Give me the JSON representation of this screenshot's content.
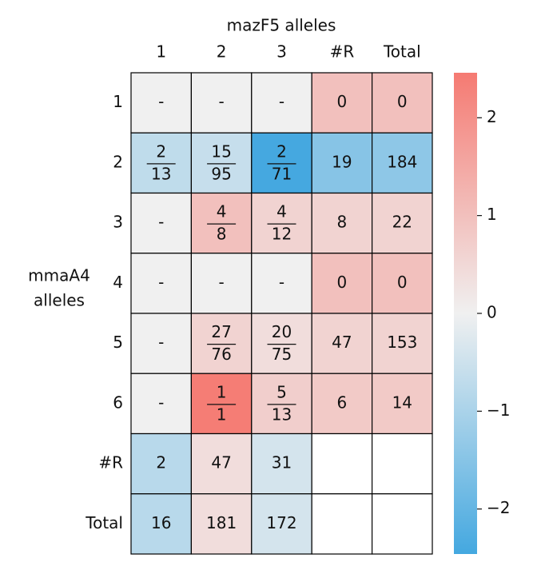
{
  "chart_data": {
    "type": "heatmap",
    "title": "mazF5 alleles",
    "ylabel": [
      "mmaA4",
      "alleles"
    ],
    "columns": [
      "1",
      "2",
      "3",
      "#R",
      "Total"
    ],
    "rows": [
      "1",
      "2",
      "3",
      "4",
      "5",
      "6",
      "#R",
      "Total"
    ],
    "cells": [
      [
        "-",
        "-",
        "-",
        "0",
        "0"
      ],
      [
        {
          "num": "2",
          "den": "13"
        },
        {
          "num": "15",
          "den": "95"
        },
        {
          "num": "2",
          "den": "71"
        },
        "19",
        "184"
      ],
      [
        "-",
        {
          "num": "4",
          "den": "8"
        },
        {
          "num": "4",
          "den": "12"
        },
        "8",
        "22"
      ],
      [
        "-",
        "-",
        "-",
        "0",
        "0"
      ],
      [
        "-",
        {
          "num": "27",
          "den": "76"
        },
        {
          "num": "20",
          "den": "75"
        },
        "47",
        "153"
      ],
      [
        "-",
        {
          "num": "1",
          "den": "1"
        },
        {
          "num": "5",
          "den": "13"
        },
        "6",
        "14"
      ],
      [
        "2",
        "47",
        "31",
        null,
        null
      ],
      [
        "16",
        "181",
        "172",
        null,
        null
      ]
    ],
    "values": [
      [
        0,
        0,
        0,
        1.0,
        1.0
      ],
      [
        -0.7,
        -0.6,
        -2.45,
        -1.5,
        -1.4
      ],
      [
        0,
        1.0,
        0.6,
        0.6,
        0.6
      ],
      [
        0,
        0,
        0,
        1.0,
        1.0
      ],
      [
        0,
        0.6,
        0.4,
        0.6,
        0.6
      ],
      [
        0,
        2.4,
        0.7,
        0.8,
        0.8
      ],
      [
        -0.8,
        0.4,
        -0.4,
        null,
        null
      ],
      [
        -0.8,
        0.4,
        -0.4,
        null,
        null
      ]
    ],
    "colormap": [
      "#44a8e0",
      "#f0f0f0",
      "#f57a72"
    ],
    "ylim": [
      -2.46,
      2.46
    ],
    "yticks": [
      {
        "value": -2,
        "label": "−2"
      },
      {
        "value": -1,
        "label": "−1"
      },
      0,
      1,
      2
    ]
  }
}
